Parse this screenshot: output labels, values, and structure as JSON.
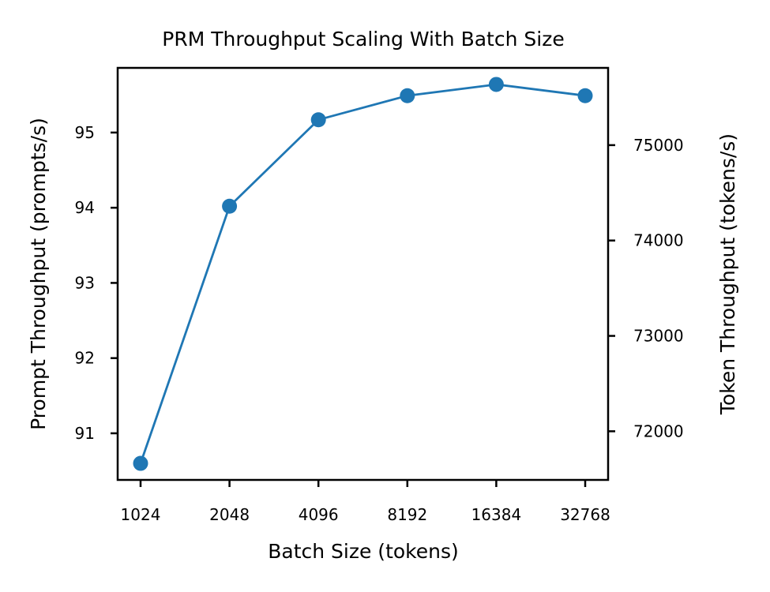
{
  "chart_data": {
    "type": "line",
    "title": "PRM Throughput Scaling With Batch Size",
    "xlabel": "Batch Size (tokens)",
    "ylabel": "Prompt Throughput (prompts/s)",
    "y2label": "Token Throughput (tokens/s)",
    "x_scale": "log2",
    "categories": [
      "1024",
      "2048",
      "4096",
      "8192",
      "16384",
      "32768"
    ],
    "x": [
      1024,
      2048,
      4096,
      8192,
      16384,
      32768
    ],
    "series": [
      {
        "values": [
          90.6,
          94.02,
          95.17,
          95.49,
          95.64,
          95.49
        ],
        "color": "#1f77b4",
        "marker": "circle"
      }
    ],
    "y_ticks": [
      91,
      92,
      93,
      94,
      95
    ],
    "y_tick_labels": [
      "91",
      "92",
      "93",
      "94",
      "95"
    ],
    "ylim": [
      90.38,
      95.86
    ],
    "y2_ticks": [
      72000,
      73000,
      74000,
      75000
    ],
    "y2_tick_labels": [
      "72000",
      "73000",
      "74000",
      "75000"
    ],
    "y2lim": [
      71490,
      75810
    ],
    "grid": false,
    "legend": false
  }
}
